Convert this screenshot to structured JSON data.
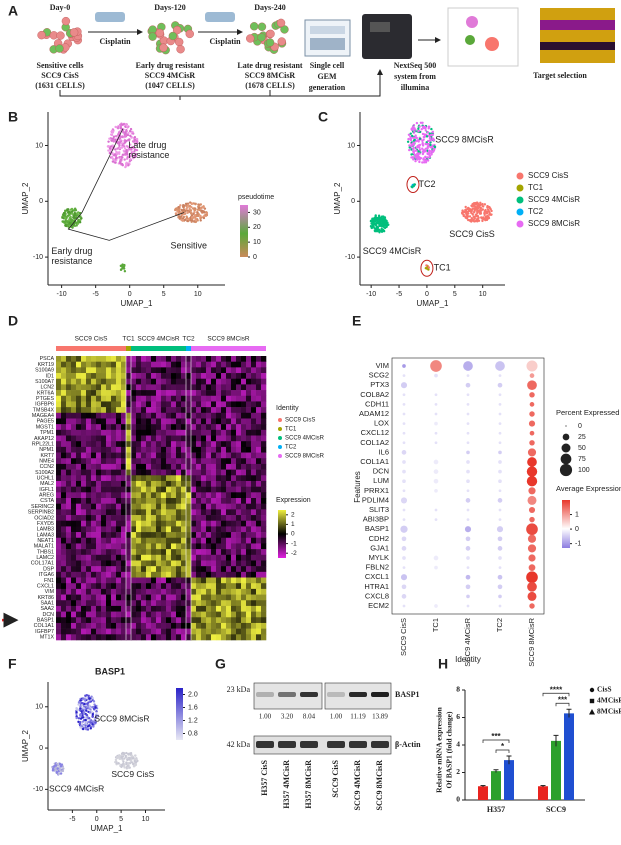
{
  "figure": {
    "panel_labels": [
      "A",
      "B",
      "C",
      "D",
      "E",
      "F",
      "G",
      "H"
    ],
    "a": {
      "days": [
        "Day-0",
        "Days-120",
        "Days-240"
      ],
      "treatment": [
        "Cisplatin",
        "Cisplatin"
      ],
      "stages": [
        [
          "Sensitive cells",
          "SCC9 CisS",
          "(1631 CELLS)"
        ],
        [
          "Early drug resistant",
          "SCC9 4MCisR",
          "(1047 CELLS)"
        ],
        [
          "Late drug resistant",
          "SCC9 8MCisR",
          "(1678 CELLS)"
        ]
      ],
      "gem": [
        "Single cell",
        "GEM",
        "generation"
      ],
      "sequencer": [
        "NextSeq 500",
        "system from",
        "illumina"
      ],
      "target": "Target selection"
    },
    "b": {
      "x_label": "UMAP_1",
      "y_label": "UMAP_2",
      "xlim": [
        -12,
        14
      ],
      "ylim": [
        -15,
        16
      ],
      "xticks": [
        -10,
        -5,
        0,
        5,
        10
      ],
      "yticks": [
        -10,
        0,
        10
      ],
      "annotations": [
        [
          "Late drug",
          "resistance"
        ],
        [
          "Sensitive"
        ],
        [
          "Early drug",
          "resistance"
        ]
      ],
      "legend": {
        "title": "pseudotime",
        "ticks": [
          30,
          20,
          10,
          0
        ],
        "lim": [
          0,
          35
        ]
      }
    },
    "c": {
      "x_label": "UMAP_1",
      "y_label": "UMAP_2",
      "xlim": [
        -12,
        14
      ],
      "ylim": [
        -15,
        16
      ],
      "xticks": [
        -10,
        -5,
        0,
        5,
        10
      ],
      "yticks": [
        -10,
        0,
        10
      ],
      "labels": [
        "SCC9 8MCisR",
        "TC2",
        "SCC9 CisS",
        "SCC9 4MCisR",
        "TC1"
      ],
      "legend": [
        {
          "name": "SCC9 CisS",
          "color": "#f8766d"
        },
        {
          "name": "TC1",
          "color": "#a3a500"
        },
        {
          "name": "SCC9 4MCisR",
          "color": "#00bf7d"
        },
        {
          "name": "TC2",
          "color": "#00b0f6"
        },
        {
          "name": "SCC9 8MCisR",
          "color": "#e76bf3"
        }
      ]
    },
    "d": {
      "clusters": [
        "SCC9 CisS",
        "TC1",
        "SCC9 4MCisR",
        "TC2",
        "SCC9 8MCisR"
      ],
      "genes": [
        "PSCA",
        "KRT19",
        "S100A9",
        "ID1",
        "S100A7",
        "LCN2",
        "KRT6A",
        "PTGES",
        "IGFBP6",
        "TMSB4X",
        "MAGEA4",
        "PAGE5",
        "MGST1",
        "TPM1",
        "AKAP12",
        "RPL22L1",
        "NPM1",
        "KRT7",
        "NME4",
        "CCN2",
        "S100A2",
        "UCHL1",
        "MAL2",
        "IGFL1",
        "AREG",
        "CSTA",
        "SERINC2",
        "SERPINB2",
        "OCIAD2",
        "FXYD5",
        "LAMB3",
        "LAMA3",
        "NEAT1",
        "MALAT1",
        "THBS1",
        "LAMC2",
        "COL17A1",
        "DSP",
        "ITGA6",
        "FN1",
        "CXCL1",
        "VIM",
        "KRT86",
        "SAA1",
        "SAA2",
        "DCN",
        "BASP1",
        "COL1A1",
        "IGFBP7",
        "MT1X"
      ],
      "identity_title": "Identity",
      "expression_title": "Expression",
      "expression_ticks": [
        2,
        1,
        0,
        -1,
        -2
      ],
      "expression_lim": [
        -2.5,
        2.5
      ]
    },
    "e": {
      "features": [
        "VIM",
        "SCG2",
        "PTX3",
        "COL8A2",
        "CDH11",
        "ADAM12",
        "LOX",
        "CXCL12",
        "COL1A2",
        "IL6",
        "COL1A1",
        "DCN",
        "LUM",
        "PRRX1",
        "PDLIM4",
        "SLIT3",
        "ABI3BP",
        "BASP1",
        "CDH2",
        "GJA1",
        "MYLK",
        "FBLN2",
        "CXCL1",
        "HTRA1",
        "CXCL8",
        "ECM2"
      ],
      "identities": [
        "SCC9 CisS",
        "TC1",
        "SCC9 4MCisR",
        "TC2",
        "SCC9 8MCisR"
      ],
      "x_label": "Identity",
      "y_label": "Features",
      "pct": [
        [
          5,
          90,
          60,
          60,
          80
        ],
        [
          2,
          5,
          2,
          2,
          10
        ],
        [
          20,
          30,
          10,
          10,
          60
        ],
        [
          2,
          2,
          2,
          2,
          15
        ],
        [
          2,
          2,
          2,
          2,
          10
        ],
        [
          2,
          2,
          2,
          2,
          15
        ],
        [
          2,
          5,
          2,
          2,
          20
        ],
        [
          2,
          2,
          2,
          2,
          10
        ],
        [
          2,
          2,
          2,
          2,
          15
        ],
        [
          10,
          20,
          5,
          5,
          40
        ],
        [
          5,
          10,
          5,
          5,
          60
        ],
        [
          5,
          10,
          5,
          5,
          70
        ],
        [
          5,
          10,
          5,
          5,
          70
        ],
        [
          2,
          5,
          2,
          2,
          30
        ],
        [
          20,
          30,
          10,
          10,
          50
        ],
        [
          2,
          2,
          2,
          2,
          20
        ],
        [
          2,
          2,
          2,
          2,
          15
        ],
        [
          30,
          40,
          20,
          20,
          90
        ],
        [
          10,
          20,
          10,
          10,
          40
        ],
        [
          10,
          20,
          10,
          10,
          40
        ],
        [
          5,
          10,
          5,
          5,
          30
        ],
        [
          2,
          5,
          2,
          2,
          25
        ],
        [
          20,
          30,
          10,
          10,
          90
        ],
        [
          10,
          20,
          10,
          10,
          60
        ],
        [
          10,
          20,
          5,
          5,
          50
        ],
        [
          2,
          5,
          2,
          2,
          15
        ]
      ],
      "avg": [
        [
          -1,
          1.2,
          -0.8,
          -0.6,
          0.5
        ],
        [
          -0.3,
          -0.3,
          -0.3,
          -0.3,
          1
        ],
        [
          -0.5,
          0,
          -0.5,
          -0.5,
          1.5
        ],
        [
          -0.3,
          -0.3,
          -0.3,
          -0.3,
          1.5
        ],
        [
          -0.3,
          -0.3,
          -0.3,
          -0.3,
          1.5
        ],
        [
          -0.3,
          -0.3,
          -0.3,
          -0.3,
          1.5
        ],
        [
          -0.3,
          -0.2,
          -0.3,
          -0.3,
          1.5
        ],
        [
          -0.3,
          -0.3,
          -0.3,
          -0.3,
          1.5
        ],
        [
          -0.3,
          -0.3,
          -0.3,
          -0.3,
          1.5
        ],
        [
          -0.4,
          0,
          -0.5,
          -0.5,
          1.5
        ],
        [
          -0.3,
          -0.2,
          -0.3,
          -0.3,
          2
        ],
        [
          -0.3,
          -0.2,
          -0.3,
          -0.3,
          2
        ],
        [
          -0.3,
          -0.2,
          -0.3,
          -0.3,
          2
        ],
        [
          -0.3,
          -0.2,
          -0.3,
          -0.3,
          1.5
        ],
        [
          -0.4,
          0,
          -0.5,
          -0.5,
          1.2
        ],
        [
          -0.3,
          -0.3,
          -0.3,
          -0.3,
          1.5
        ],
        [
          -0.3,
          -0.3,
          -0.3,
          -0.3,
          1.5
        ],
        [
          -0.5,
          0,
          -0.8,
          -0.5,
          1.8
        ],
        [
          -0.4,
          0,
          -0.5,
          -0.5,
          1.5
        ],
        [
          -0.4,
          0,
          -0.5,
          -0.5,
          1.5
        ],
        [
          -0.3,
          -0.2,
          -0.3,
          -0.3,
          1.5
        ],
        [
          -0.3,
          -0.2,
          -0.3,
          -0.3,
          1.5
        ],
        [
          -0.6,
          0,
          -0.7,
          -0.6,
          2
        ],
        [
          -0.4,
          0,
          -0.5,
          -0.5,
          1.8
        ],
        [
          -0.4,
          0,
          -0.5,
          -0.5,
          1.8
        ],
        [
          -0.3,
          -0.2,
          -0.3,
          -0.3,
          1.5
        ]
      ],
      "size_legend": {
        "title": "Percent Expressed",
        "values": [
          0,
          25,
          50,
          75,
          100
        ]
      },
      "color_legend": {
        "title": "Average Expression",
        "ticks": [
          1,
          0,
          -1
        ],
        "lim": [
          -1.3,
          2
        ]
      }
    },
    "f": {
      "title": "BASP1",
      "x_label": "UMAP_1",
      "y_label": "UMAP_2",
      "xlim": [
        -10,
        14
      ],
      "ylim": [
        -15,
        16
      ],
      "xticks": [
        -5,
        0,
        5,
        10
      ],
      "yticks": [
        -10,
        0,
        10
      ],
      "labels": [
        "SCC9 8MCisR",
        "SCC9 CisS",
        "SCC9 4MCisR"
      ],
      "colorbar": {
        "ticks": [
          {
            "value": 2,
            "label": "2.0"
          },
          1.6,
          1.2,
          0.8
        ],
        "lim": [
          0.6,
          2.2
        ]
      }
    },
    "g": {
      "markers": [
        "23 kDa",
        "42 kDa"
      ],
      "proteins": [
        "BASP1",
        "β-Actin"
      ],
      "quantification": [
        "1.00",
        "3.20",
        "8.04",
        "1.00",
        "11.19",
        "13.89"
      ],
      "lanes": [
        "H357 CisS",
        "H357 4MCisR",
        "H357 8MCisR",
        "SCC9 CisS",
        "SCC9 4MCisR",
        "SCC9 8MCisR"
      ]
    },
    "h": {
      "y_label": [
        "Relative mRNA expression",
        "Of BASP1 (fold change)"
      ],
      "categories": [
        "H357",
        "SCC9"
      ],
      "ylim": [
        0,
        8
      ],
      "yticks": [
        0,
        2,
        4,
        6,
        8
      ],
      "series": [
        {
          "name": "CisS",
          "color": "#e8231f",
          "values": [
            1,
            1
          ],
          "errors": [
            0.05,
            0.05
          ]
        },
        {
          "name": "4MCisR",
          "color": "#2ca02c",
          "values": [
            2.1,
            4.3
          ],
          "errors": [
            0.1,
            0.4
          ]
        },
        {
          "name": "8MCisR",
          "color": "#1f4fd1",
          "values": [
            2.9,
            6.3
          ],
          "errors": [
            0.3,
            0.3
          ]
        }
      ],
      "significance": [
        [
          "***",
          "*"
        ],
        [
          "****",
          "***"
        ]
      ]
    }
  }
}
